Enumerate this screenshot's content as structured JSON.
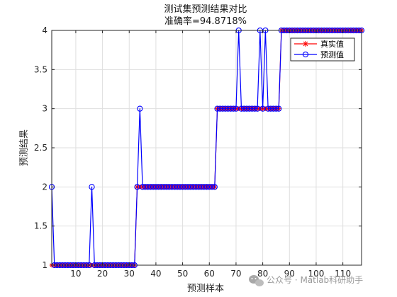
{
  "chart_data": {
    "type": "line",
    "title": "测试集预测结果对比",
    "subtitle": "准确率=94.8718%",
    "xlabel": "预测样本",
    "ylabel": "预测结果",
    "xlim": [
      1,
      117
    ],
    "ylim": [
      1,
      4
    ],
    "xticks": [
      10,
      20,
      30,
      40,
      50,
      60,
      70,
      80,
      90,
      100,
      110
    ],
    "yticks": [
      1,
      1.5,
      2,
      2.5,
      3,
      3.5,
      4
    ],
    "grid": true,
    "legend_position": "top-right",
    "series": [
      {
        "name": "真实值",
        "color": "#ff0000",
        "marker": "star",
        "values": [
          1,
          1,
          1,
          1,
          1,
          1,
          1,
          1,
          1,
          1,
          1,
          1,
          1,
          1,
          1,
          1,
          1,
          1,
          1,
          1,
          1,
          1,
          1,
          1,
          1,
          1,
          1,
          1,
          1,
          1,
          1,
          1,
          2,
          2,
          2,
          2,
          2,
          2,
          2,
          2,
          2,
          2,
          2,
          2,
          2,
          2,
          2,
          2,
          2,
          2,
          2,
          2,
          2,
          2,
          2,
          2,
          2,
          2,
          2,
          2,
          2,
          2,
          3,
          3,
          3,
          3,
          3,
          3,
          3,
          3,
          3,
          3,
          3,
          3,
          3,
          3,
          3,
          3,
          3,
          3,
          3,
          3,
          3,
          3,
          3,
          3,
          4,
          4,
          4,
          4,
          4,
          4,
          4,
          4,
          4,
          4,
          4,
          4,
          4,
          4,
          4,
          4,
          4,
          4,
          4,
          4,
          4,
          4,
          4,
          4,
          4,
          4,
          4,
          4,
          4,
          4,
          4
        ]
      },
      {
        "name": "预测值",
        "color": "#0000ff",
        "marker": "circle",
        "values": [
          2,
          1,
          1,
          1,
          1,
          1,
          1,
          1,
          1,
          1,
          1,
          1,
          1,
          1,
          1,
          2,
          1,
          1,
          1,
          1,
          1,
          1,
          1,
          1,
          1,
          1,
          1,
          1,
          1,
          1,
          1,
          1,
          2,
          3,
          2,
          2,
          2,
          2,
          2,
          2,
          2,
          2,
          2,
          2,
          2,
          2,
          2,
          2,
          2,
          2,
          2,
          2,
          2,
          2,
          2,
          2,
          2,
          2,
          2,
          2,
          2,
          2,
          3,
          3,
          3,
          3,
          3,
          3,
          3,
          3,
          4,
          3,
          3,
          3,
          3,
          3,
          3,
          3,
          4,
          3,
          4,
          3,
          3,
          3,
          3,
          3,
          4,
          4,
          4,
          4,
          4,
          4,
          4,
          4,
          4,
          4,
          4,
          4,
          4,
          4,
          4,
          4,
          4,
          4,
          4,
          4,
          4,
          4,
          4,
          4,
          4,
          4,
          4,
          4,
          4,
          4,
          4
        ]
      }
    ]
  },
  "watermark": {
    "text": "公众号 · Matlab科研助手",
    "icon": "wechat-icon"
  }
}
